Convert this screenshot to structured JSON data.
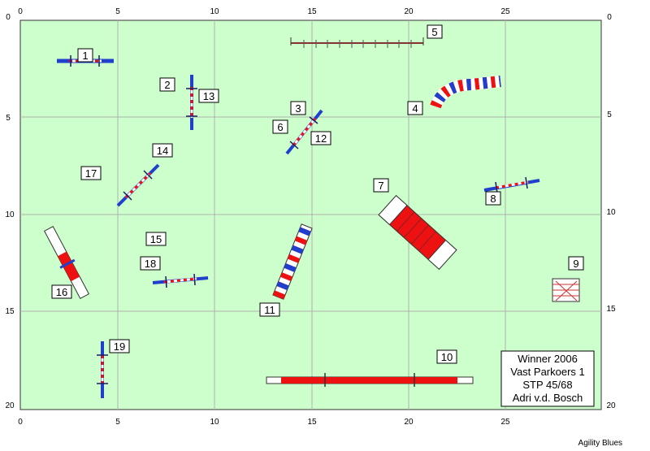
{
  "axis": {
    "top_ticks": [
      "0",
      "5",
      "10",
      "15",
      "20",
      "25"
    ],
    "left_ticks": [
      "0",
      "5",
      "10",
      "15",
      "20"
    ]
  },
  "info_box": {
    "line1": "Winner 2006",
    "line2": "Vast Parkoers 1",
    "line3": "STP 45/68",
    "line4": "Adri v.d. Bosch"
  },
  "credit": "Agility Blues",
  "labels": [
    "1",
    "2",
    "3",
    "4",
    "5",
    "6",
    "7",
    "8",
    "9",
    "10",
    "11",
    "12",
    "13",
    "14",
    "15",
    "16",
    "17",
    "18",
    "19"
  ],
  "colors": {
    "field": "#ccffcc",
    "grid": "#b0b0b0",
    "blue": "#1f3fcc",
    "red": "#ee1111",
    "pole": "#cc3333"
  },
  "obstacles": [
    {
      "num": "1",
      "type": "jump"
    },
    {
      "num": "2",
      "type": "jump"
    },
    {
      "num": "3",
      "type": "jump"
    },
    {
      "num": "4",
      "type": "tunnel"
    },
    {
      "num": "5",
      "type": "dogwalk"
    },
    {
      "num": "6",
      "type": "jump"
    },
    {
      "num": "7",
      "type": "a-frame"
    },
    {
      "num": "8",
      "type": "jump"
    },
    {
      "num": "9",
      "type": "table"
    },
    {
      "num": "10",
      "type": "dogwalk"
    },
    {
      "num": "11",
      "type": "seesaw"
    },
    {
      "num": "12",
      "type": "jump"
    },
    {
      "num": "13",
      "type": "jump"
    },
    {
      "num": "14",
      "type": "jump"
    },
    {
      "num": "15",
      "type": "jump"
    },
    {
      "num": "16",
      "type": "seesaw"
    },
    {
      "num": "17",
      "type": "jump"
    },
    {
      "num": "18",
      "type": "jump"
    },
    {
      "num": "19",
      "type": "jump"
    }
  ]
}
